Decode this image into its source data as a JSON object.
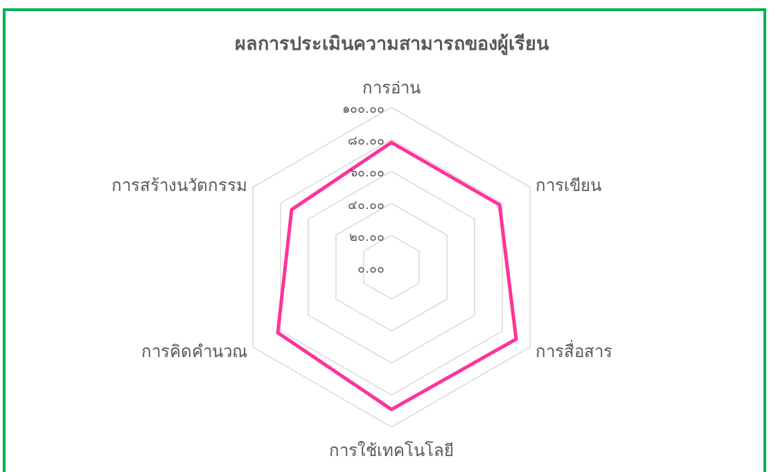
{
  "chart_data": {
    "type": "radar",
    "title": "ผลการประเมินความสามารถของผู้เรียน",
    "categories": [
      "การอ่าน",
      "การเขียน",
      "การสื่อสาร",
      "การใช้เทคโนโลยี",
      "การคิดคำนวณ",
      "การสร้างนวัตกรรม"
    ],
    "series": [
      {
        "color": "#ff3399",
        "values": [
          78,
          78,
          90,
          89,
          82,
          72
        ]
      }
    ],
    "ylim": [
      0,
      100
    ],
    "yticks": [
      {
        "value": 0,
        "label": "๐.๐๐"
      },
      {
        "value": 20,
        "label": "๒๐.๐๐"
      },
      {
        "value": 40,
        "label": "๔๐.๐๐"
      },
      {
        "value": 60,
        "label": "๖๐.๐๐"
      },
      {
        "value": 80,
        "label": "๘๐.๐๐"
      },
      {
        "value": 100,
        "label": "๑๐๐.๐๐"
      }
    ],
    "grid": true,
    "marker": "none",
    "line_style": "solid"
  }
}
